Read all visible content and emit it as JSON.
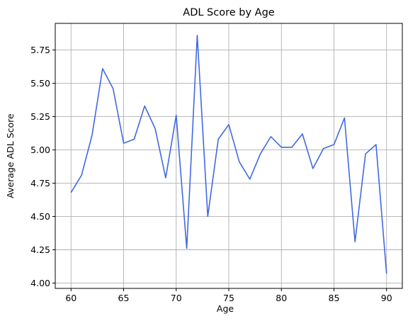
{
  "chart_data": {
    "type": "line",
    "title": "ADL Score by Age",
    "xlabel": "Age",
    "ylabel": "Average ADL Score",
    "xlim": [
      58.5,
      91.5
    ],
    "ylim": [
      3.96,
      5.95
    ],
    "xticks": [
      60,
      65,
      70,
      75,
      80,
      85,
      90
    ],
    "yticks": [
      4.0,
      4.25,
      4.5,
      4.75,
      5.0,
      5.25,
      5.5,
      5.75
    ],
    "ytick_labels": [
      "4.00",
      "4.25",
      "4.50",
      "4.75",
      "5.00",
      "5.25",
      "5.50",
      "5.75"
    ],
    "grid": true,
    "line_color": "#4169e1",
    "series": [
      {
        "x": [
          60,
          61,
          62,
          63,
          64,
          65,
          66,
          67,
          68,
          69,
          70,
          71,
          72,
          73,
          74,
          75,
          76,
          77,
          78,
          79,
          80,
          81,
          82,
          83,
          84,
          85,
          86,
          87,
          88,
          89,
          90
        ],
        "y": [
          4.68,
          4.81,
          5.11,
          5.61,
          5.46,
          5.05,
          5.08,
          5.33,
          5.16,
          4.79,
          5.26,
          4.26,
          5.86,
          4.5,
          5.08,
          5.19,
          4.91,
          4.78,
          4.97,
          5.1,
          5.02,
          5.02,
          5.12,
          4.86,
          5.01,
          5.04,
          5.24,
          4.31,
          4.97,
          5.04,
          4.07
        ]
      }
    ]
  }
}
